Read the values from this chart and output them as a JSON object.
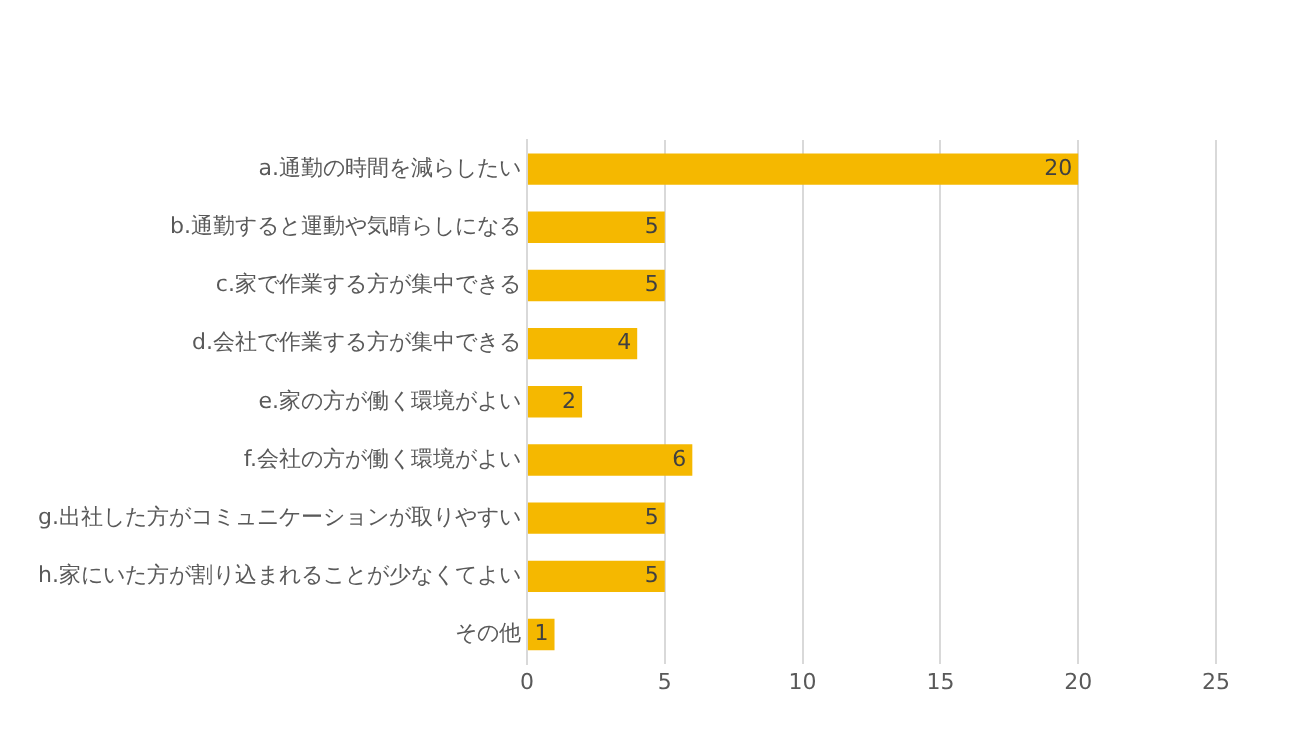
{
  "chart_data": {
    "type": "bar",
    "orientation": "horizontal",
    "categories": [
      "a.通勤の時間を減らしたい",
      "b.通勤すると運動や気晴らしになる",
      "c.家で作業する方が集中できる",
      "d.会社で作業する方が集中できる",
      "e.家の方が働く環境がよい",
      "f.会社の方が働く環境がよい",
      "g.出社した方がコミュニケーションが取りやすい",
      "h.家にいた方が割り込まれることが少なくてよい",
      "その他"
    ],
    "values": [
      20,
      5,
      5,
      4,
      2,
      6,
      5,
      5,
      1
    ],
    "color": "#f5b800",
    "xlim": [
      0,
      25
    ],
    "xticks": [
      0,
      5,
      10,
      15,
      20,
      25
    ],
    "grid": "x",
    "data_labels": true,
    "legend": false
  }
}
